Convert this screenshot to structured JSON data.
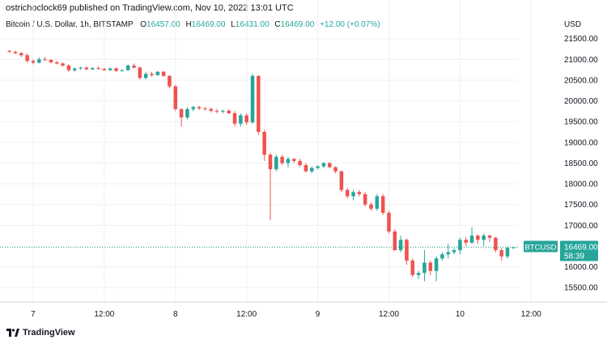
{
  "header": {
    "published": "ostrichoclock69 published on TradingView.com, Nov 10, 2022 13:01 UTC",
    "symbol": "Bitcoin / U.S. Dollar, 1h, BITSTAMP",
    "o_label": "O",
    "o_value": "16457.00",
    "h_label": "H",
    "h_value": "16469.00",
    "l_label": "L",
    "l_value": "16431.00",
    "c_label": "C",
    "c_value": "16469.00",
    "change": "+12.00 (+0.07%)"
  },
  "axis": {
    "currency": "USD"
  },
  "price_tag": {
    "ticker": "BTCUSD",
    "price": "16469.00",
    "countdown": "58:39"
  },
  "brand": {
    "name": "TradingView",
    "logo_icon": "tradingview-logo-icon"
  },
  "colors": {
    "up": "#26a69a",
    "down": "#ef5350",
    "grid": "#eef0f3",
    "text": "#131722"
  },
  "chart_data": {
    "type": "candlestick",
    "interval": "1h",
    "ylim": [
      15250,
      21650
    ],
    "yticks": [
      15500,
      16000,
      16500,
      17000,
      17500,
      18000,
      18500,
      19000,
      19500,
      20000,
      20500,
      21000,
      21500
    ],
    "ytick_labels": [
      "15500.00",
      "16000.00",
      "16500.00",
      "17000.00",
      "17500.00",
      "18000.00",
      "18500.00",
      "19000.00",
      "19500.00",
      "20000.00",
      "20500.00",
      "21000.00",
      "21500.00"
    ],
    "xticks": [
      {
        "label": "7",
        "index": 4
      },
      {
        "label": "12:00",
        "index": 16
      },
      {
        "label": "8",
        "index": 28
      },
      {
        "label": "12:00",
        "index": 40
      },
      {
        "label": "9",
        "index": 52
      },
      {
        "label": "12:00",
        "index": 64
      },
      {
        "label": "10",
        "index": 76
      },
      {
        "label": "12:00",
        "index": 88
      }
    ],
    "last_price": 16469,
    "candles": [
      [
        21200,
        21230,
        21160,
        21180
      ],
      [
        21180,
        21210,
        21120,
        21150
      ],
      [
        21150,
        21180,
        21050,
        21100
      ],
      [
        21100,
        21140,
        20920,
        20960
      ],
      [
        20960,
        21000,
        20880,
        20920
      ],
      [
        20920,
        21050,
        20900,
        21000
      ],
      [
        21000,
        21060,
        20960,
        20990
      ],
      [
        20990,
        21000,
        20900,
        20930
      ],
      [
        20930,
        20960,
        20880,
        20900
      ],
      [
        20900,
        20930,
        20820,
        20850
      ],
      [
        20850,
        20880,
        20700,
        20740
      ],
      [
        20740,
        20800,
        20700,
        20780
      ],
      [
        20780,
        20820,
        20750,
        20800
      ],
      [
        20800,
        20830,
        20740,
        20760
      ],
      [
        20760,
        20810,
        20740,
        20790
      ],
      [
        20790,
        20830,
        20750,
        20770
      ],
      [
        20770,
        20790,
        20720,
        20740
      ],
      [
        20740,
        20800,
        20720,
        20780
      ],
      [
        20780,
        20810,
        20700,
        20720
      ],
      [
        20720,
        20760,
        20700,
        20740
      ],
      [
        20740,
        20880,
        20720,
        20850
      ],
      [
        20850,
        20900,
        20780,
        20800
      ],
      [
        20800,
        20830,
        20520,
        20550
      ],
      [
        20550,
        20700,
        20520,
        20650
      ],
      [
        20650,
        20700,
        20580,
        20620
      ],
      [
        20620,
        20720,
        20600,
        20700
      ],
      [
        20700,
        20720,
        20580,
        20600
      ],
      [
        20600,
        20620,
        20300,
        20350
      ],
      [
        20350,
        20380,
        19750,
        19800
      ],
      [
        19800,
        19820,
        19380,
        19600
      ],
      [
        19600,
        19850,
        19550,
        19800
      ],
      [
        19800,
        19880,
        19750,
        19850
      ],
      [
        19850,
        19880,
        19780,
        19820
      ],
      [
        19820,
        19850,
        19760,
        19800
      ],
      [
        19800,
        19840,
        19720,
        19760
      ],
      [
        19760,
        19800,
        19700,
        19740
      ],
      [
        19740,
        19790,
        19700,
        19760
      ],
      [
        19760,
        19800,
        19680,
        19700
      ],
      [
        19700,
        19750,
        19380,
        19450
      ],
      [
        19450,
        19700,
        19380,
        19650
      ],
      [
        19650,
        19700,
        19420,
        19480
      ],
      [
        19480,
        20650,
        19450,
        20600
      ],
      [
        20600,
        20620,
        19180,
        19250
      ],
      [
        19250,
        19300,
        18550,
        18700
      ],
      [
        18700,
        18750,
        17120,
        18350
      ],
      [
        18350,
        18700,
        18300,
        18650
      ],
      [
        18650,
        18700,
        18450,
        18500
      ],
      [
        18500,
        18650,
        18400,
        18600
      ],
      [
        18600,
        18620,
        18500,
        18550
      ],
      [
        18550,
        18600,
        18400,
        18450
      ],
      [
        18450,
        18500,
        18280,
        18300
      ],
      [
        18300,
        18420,
        18250,
        18380
      ],
      [
        18380,
        18450,
        18350,
        18420
      ],
      [
        18420,
        18520,
        18380,
        18500
      ],
      [
        18500,
        18520,
        18380,
        18400
      ],
      [
        18400,
        18420,
        18250,
        18300
      ],
      [
        18300,
        18320,
        17800,
        17850
      ],
      [
        17850,
        17900,
        17650,
        17700
      ],
      [
        17700,
        17850,
        17600,
        17800
      ],
      [
        17800,
        17850,
        17700,
        17750
      ],
      [
        17750,
        17800,
        17450,
        17500
      ],
      [
        17500,
        17550,
        17350,
        17400
      ],
      [
        17400,
        17750,
        17350,
        17700
      ],
      [
        17700,
        17750,
        17250,
        17300
      ],
      [
        17300,
        17350,
        16800,
        16850
      ],
      [
        16850,
        16900,
        16380,
        16400
      ],
      [
        16400,
        16750,
        16350,
        16650
      ],
      [
        16650,
        16680,
        16050,
        16150
      ],
      [
        16150,
        16200,
        15750,
        15800
      ],
      [
        15800,
        15900,
        15700,
        15850
      ],
      [
        15850,
        16400,
        15650,
        16100
      ],
      [
        16100,
        16150,
        15800,
        15900
      ],
      [
        15900,
        16250,
        15650,
        16200
      ],
      [
        16200,
        16350,
        16150,
        16300
      ],
      [
        16300,
        16550,
        16200,
        16350
      ],
      [
        16350,
        16450,
        16300,
        16400
      ],
      [
        16400,
        16700,
        16300,
        16650
      ],
      [
        16650,
        16720,
        16500,
        16580
      ],
      [
        16580,
        16950,
        16550,
        16750
      ],
      [
        16750,
        16780,
        16550,
        16650
      ],
      [
        16650,
        16800,
        16500,
        16750
      ],
      [
        16750,
        16780,
        16600,
        16700
      ],
      [
        16700,
        16720,
        16350,
        16400
      ],
      [
        16400,
        16450,
        16150,
        16250
      ],
      [
        16250,
        16480,
        16200,
        16457
      ],
      [
        16457,
        16469,
        16431,
        16469
      ]
    ]
  }
}
